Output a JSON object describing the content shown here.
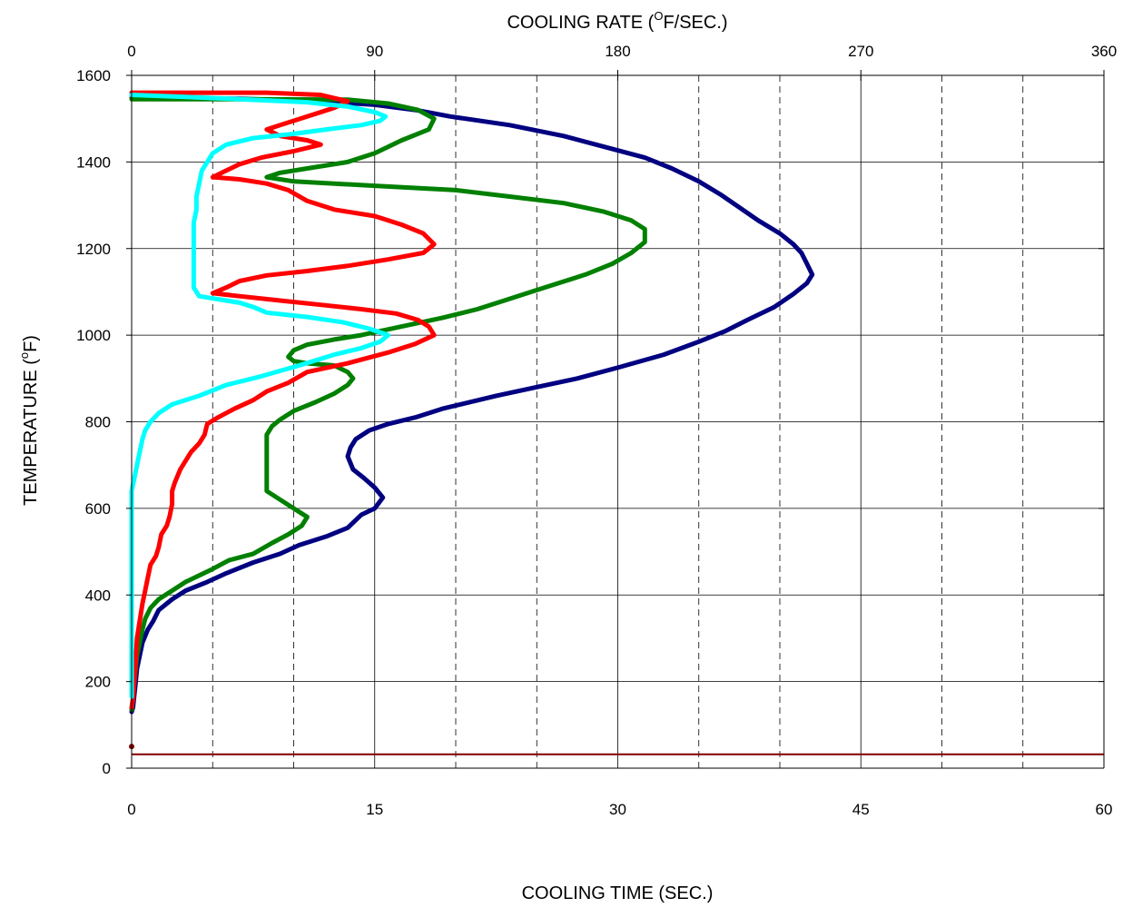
{
  "chart_data": {
    "type": "line",
    "title": "",
    "xlabel": "COOLING TIME (SEC.)",
    "x2label": {
      "pre": "COOLING RATE (",
      "sup": "O",
      "post": "F/SEC.)"
    },
    "ylabel": {
      "pre": "TEMPERATURE  (",
      "sup": "o",
      "post": "F)"
    },
    "xlim": [
      0,
      60
    ],
    "x2lim": [
      0,
      360
    ],
    "ylim": [
      0,
      1600
    ],
    "x_ticks": [
      "0",
      "15",
      "30",
      "45",
      "60"
    ],
    "x2_ticks": [
      "0",
      "90",
      "180",
      "270",
      "360"
    ],
    "y_ticks": [
      "0",
      "200",
      "400",
      "600",
      "800",
      "1000",
      "1200",
      "1400",
      "1600"
    ],
    "grid": true,
    "series": [
      {
        "color": "#000080",
        "axis": "x2",
        "points": [
          [
            0,
            1548
          ],
          [
            40,
            1546
          ],
          [
            70,
            1540
          ],
          [
            90,
            1532
          ],
          [
            105,
            1520
          ],
          [
            118,
            1505
          ],
          [
            140,
            1485
          ],
          [
            160,
            1460
          ],
          [
            178,
            1430
          ],
          [
            190,
            1410
          ],
          [
            200,
            1385
          ],
          [
            210,
            1355
          ],
          [
            218,
            1325
          ],
          [
            225,
            1295
          ],
          [
            232,
            1265
          ],
          [
            240,
            1235
          ],
          [
            245,
            1210
          ],
          [
            248,
            1190
          ],
          [
            250,
            1165
          ],
          [
            252,
            1140
          ],
          [
            250,
            1120
          ],
          [
            245,
            1095
          ],
          [
            238,
            1065
          ],
          [
            228,
            1035
          ],
          [
            220,
            1010
          ],
          [
            210,
            985
          ],
          [
            197,
            955
          ],
          [
            180,
            925
          ],
          [
            165,
            900
          ],
          [
            150,
            880
          ],
          [
            135,
            860
          ],
          [
            115,
            830
          ],
          [
            105,
            810
          ],
          [
            95,
            795
          ],
          [
            88,
            780
          ],
          [
            83,
            760
          ],
          [
            81,
            740
          ],
          [
            80,
            720
          ],
          [
            82,
            690
          ],
          [
            86,
            670
          ],
          [
            90,
            648
          ],
          [
            93,
            625
          ],
          [
            90,
            600
          ],
          [
            85,
            585
          ],
          [
            80,
            555
          ],
          [
            72,
            535
          ],
          [
            62,
            515
          ],
          [
            55,
            495
          ],
          [
            45,
            475
          ],
          [
            35,
            450
          ],
          [
            28,
            430
          ],
          [
            20,
            410
          ],
          [
            15,
            390
          ],
          [
            10,
            365
          ],
          [
            8,
            340
          ],
          [
            6,
            320
          ],
          [
            4,
            290
          ],
          [
            3,
            260
          ],
          [
            2,
            230
          ],
          [
            1.5,
            200
          ],
          [
            1,
            170
          ],
          [
            0.5,
            140
          ],
          [
            0,
            130
          ]
        ]
      },
      {
        "color": "#008000",
        "axis": "x2",
        "points": [
          [
            0,
            1545
          ],
          [
            40,
            1545
          ],
          [
            80,
            1544
          ],
          [
            95,
            1535
          ],
          [
            106,
            1520
          ],
          [
            112,
            1500
          ],
          [
            110,
            1475
          ],
          [
            100,
            1450
          ],
          [
            90,
            1420
          ],
          [
            80,
            1400
          ],
          [
            65,
            1385
          ],
          [
            55,
            1375
          ],
          [
            50,
            1365
          ],
          [
            60,
            1355
          ],
          [
            90,
            1345
          ],
          [
            120,
            1335
          ],
          [
            140,
            1320
          ],
          [
            160,
            1305
          ],
          [
            175,
            1285
          ],
          [
            185,
            1265
          ],
          [
            190,
            1245
          ],
          [
            190,
            1215
          ],
          [
            185,
            1190
          ],
          [
            178,
            1165
          ],
          [
            168,
            1140
          ],
          [
            158,
            1120
          ],
          [
            148,
            1100
          ],
          [
            138,
            1080
          ],
          [
            128,
            1060
          ],
          [
            115,
            1040
          ],
          [
            100,
            1020
          ],
          [
            85,
            1000
          ],
          [
            75,
            990
          ],
          [
            65,
            978
          ],
          [
            60,
            965
          ],
          [
            58,
            950
          ],
          [
            60,
            940
          ],
          [
            65,
            935
          ],
          [
            75,
            930
          ],
          [
            80,
            915
          ],
          [
            82,
            900
          ],
          [
            80,
            885
          ],
          [
            75,
            865
          ],
          [
            68,
            845
          ],
          [
            60,
            825
          ],
          [
            55,
            805
          ],
          [
            52,
            790
          ],
          [
            50,
            770
          ],
          [
            50,
            740
          ],
          [
            50,
            710
          ],
          [
            50,
            680
          ],
          [
            50,
            640
          ],
          [
            55,
            620
          ],
          [
            60,
            600
          ],
          [
            65,
            580
          ],
          [
            63,
            560
          ],
          [
            58,
            540
          ],
          [
            52,
            520
          ],
          [
            45,
            495
          ],
          [
            36,
            480
          ],
          [
            30,
            460
          ],
          [
            25,
            445
          ],
          [
            20,
            430
          ],
          [
            15,
            410
          ],
          [
            10,
            390
          ],
          [
            7,
            370
          ],
          [
            5,
            345
          ],
          [
            4,
            320
          ],
          [
            3,
            290
          ],
          [
            2,
            260
          ],
          [
            1.5,
            230
          ],
          [
            1,
            200
          ],
          [
            0.5,
            160
          ],
          [
            0,
            135
          ]
        ]
      },
      {
        "color": "#ff0000",
        "axis": "x2",
        "points": [
          [
            0,
            1560
          ],
          [
            50,
            1560
          ],
          [
            70,
            1555
          ],
          [
            80,
            1540
          ],
          [
            75,
            1525
          ],
          [
            65,
            1505
          ],
          [
            55,
            1485
          ],
          [
            50,
            1475
          ],
          [
            55,
            1460
          ],
          [
            65,
            1450
          ],
          [
            70,
            1440
          ],
          [
            60,
            1425
          ],
          [
            48,
            1410
          ],
          [
            40,
            1395
          ],
          [
            35,
            1380
          ],
          [
            30,
            1365
          ],
          [
            40,
            1360
          ],
          [
            50,
            1350
          ],
          [
            58,
            1335
          ],
          [
            65,
            1310
          ],
          [
            75,
            1290
          ],
          [
            90,
            1275
          ],
          [
            100,
            1255
          ],
          [
            108,
            1235
          ],
          [
            112,
            1210
          ],
          [
            108,
            1190
          ],
          [
            95,
            1175
          ],
          [
            80,
            1160
          ],
          [
            65,
            1148
          ],
          [
            50,
            1138
          ],
          [
            40,
            1125
          ],
          [
            35,
            1110
          ],
          [
            30,
            1097
          ],
          [
            40,
            1090
          ],
          [
            55,
            1080
          ],
          [
            70,
            1070
          ],
          [
            85,
            1060
          ],
          [
            98,
            1050
          ],
          [
            106,
            1035
          ],
          [
            110,
            1020
          ],
          [
            112,
            1000
          ],
          [
            105,
            980
          ],
          [
            95,
            960
          ],
          [
            80,
            935
          ],
          [
            65,
            915
          ],
          [
            58,
            890
          ],
          [
            50,
            870
          ],
          [
            45,
            850
          ],
          [
            38,
            830
          ],
          [
            32,
            810
          ],
          [
            28,
            795
          ],
          [
            27,
            770
          ],
          [
            25,
            750
          ],
          [
            22,
            730
          ],
          [
            20,
            710
          ],
          [
            18,
            690
          ],
          [
            16,
            660
          ],
          [
            15,
            640
          ],
          [
            15,
            610
          ],
          [
            14,
            580
          ],
          [
            13,
            560
          ],
          [
            11,
            540
          ],
          [
            10,
            510
          ],
          [
            9,
            490
          ],
          [
            7,
            470
          ],
          [
            6,
            440
          ],
          [
            5,
            410
          ],
          [
            4,
            380
          ],
          [
            3,
            340
          ],
          [
            2,
            300
          ],
          [
            1.5,
            250
          ],
          [
            1,
            200
          ],
          [
            0.5,
            160
          ],
          [
            0,
            140
          ]
        ]
      },
      {
        "color": "#00ffff",
        "axis": "x2",
        "points": [
          [
            0,
            1555
          ],
          [
            20,
            1550
          ],
          [
            40,
            1545
          ],
          [
            65,
            1538
          ],
          [
            80,
            1528
          ],
          [
            90,
            1515
          ],
          [
            94,
            1505
          ],
          [
            92,
            1495
          ],
          [
            85,
            1485
          ],
          [
            72,
            1475
          ],
          [
            60,
            1465
          ],
          [
            45,
            1455
          ],
          [
            35,
            1440
          ],
          [
            30,
            1420
          ],
          [
            28,
            1400
          ],
          [
            26,
            1380
          ],
          [
            25,
            1350
          ],
          [
            24,
            1320
          ],
          [
            24,
            1290
          ],
          [
            23,
            1260
          ],
          [
            23,
            1230
          ],
          [
            23,
            1200
          ],
          [
            23,
            1170
          ],
          [
            23,
            1140
          ],
          [
            23,
            1110
          ],
          [
            25,
            1090
          ],
          [
            40,
            1075
          ],
          [
            45,
            1065
          ],
          [
            50,
            1052
          ],
          [
            65,
            1042
          ],
          [
            78,
            1030
          ],
          [
            88,
            1015
          ],
          [
            95,
            1000
          ],
          [
            92,
            985
          ],
          [
            85,
            970
          ],
          [
            75,
            955
          ],
          [
            62,
            930
          ],
          [
            48,
            905
          ],
          [
            35,
            885
          ],
          [
            25,
            860
          ],
          [
            15,
            840
          ],
          [
            10,
            820
          ],
          [
            7,
            800
          ],
          [
            5,
            780
          ],
          [
            4,
            760
          ],
          [
            3,
            730
          ],
          [
            2,
            700
          ],
          [
            1,
            670
          ],
          [
            0,
            640
          ],
          [
            -1,
            610
          ],
          [
            -2,
            580
          ],
          [
            -3,
            550
          ],
          [
            -4,
            520
          ],
          [
            -5,
            500
          ],
          [
            -7,
            470
          ],
          [
            -8,
            440
          ],
          [
            -9,
            410
          ],
          [
            -10,
            380
          ],
          [
            -11,
            350
          ],
          [
            -12,
            320
          ],
          [
            -13,
            290
          ],
          [
            -14,
            260
          ],
          [
            -15,
            230
          ],
          [
            -16,
            200
          ],
          [
            -17,
            180
          ],
          [
            -18,
            165
          ]
        ]
      }
    ],
    "baseline": {
      "color": "#800000",
      "y": 32
    },
    "marker": {
      "color": "#800000",
      "x": 0,
      "y": 50
    }
  }
}
